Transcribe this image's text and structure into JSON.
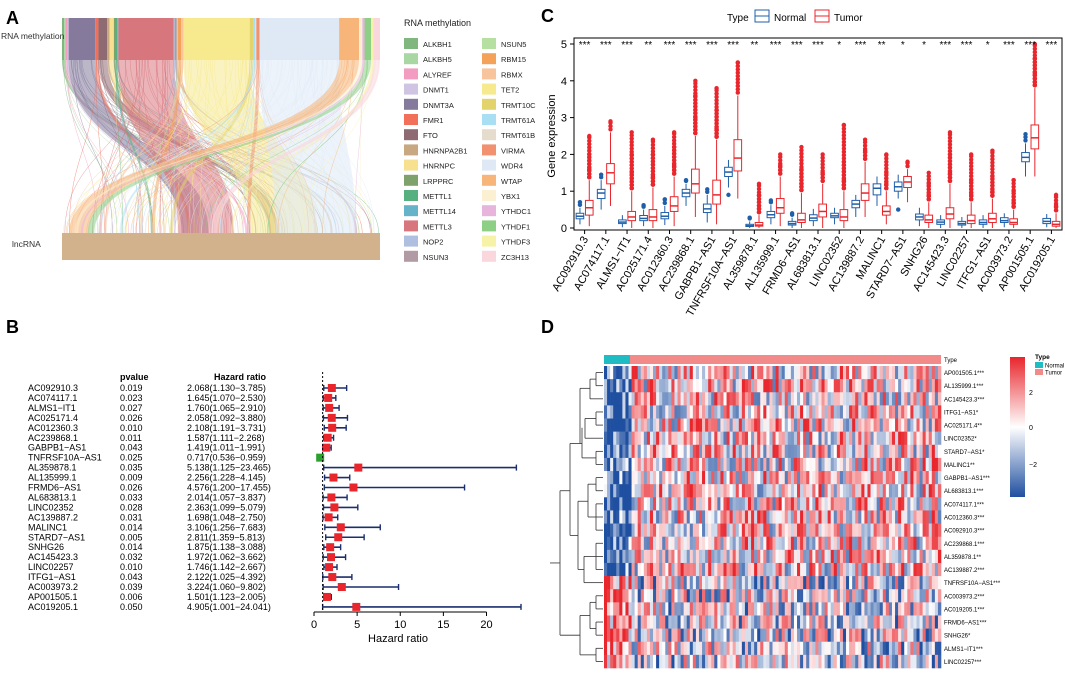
{
  "panels": {
    "a": "A",
    "b": "B",
    "c": "C",
    "d": "D"
  },
  "panel_a": {
    "top_label": "RNA methylation",
    "bottom_label": "lncRNA",
    "legend_title": "RNA methylation",
    "legend_items": [
      {
        "name": "ALKBH1",
        "color": "#7fb77e"
      },
      {
        "name": "ALKBH5",
        "color": "#a9d7a3"
      },
      {
        "name": "ALYREF",
        "color": "#f29cc2"
      },
      {
        "name": "DNMT1",
        "color": "#cfc4e2"
      },
      {
        "name": "DNMT3A",
        "color": "#857a9c"
      },
      {
        "name": "FMR1",
        "color": "#f26f5a"
      },
      {
        "name": "FTO",
        "color": "#8e6a72"
      },
      {
        "name": "HNRNPA2B1",
        "color": "#c8a880"
      },
      {
        "name": "HNRNPC",
        "color": "#f7e08f"
      },
      {
        "name": "LRPPRC",
        "color": "#7fa16b"
      },
      {
        "name": "METTL1",
        "color": "#57b07f"
      },
      {
        "name": "METTL14",
        "color": "#64b3c9"
      },
      {
        "name": "METTL3",
        "color": "#d8767e"
      },
      {
        "name": "NOP2",
        "color": "#aebfe0"
      },
      {
        "name": "NSUN3",
        "color": "#b29aa5"
      },
      {
        "name": "NSUN5",
        "color": "#b6dfa2"
      },
      {
        "name": "RBM15",
        "color": "#f4a259"
      },
      {
        "name": "RBMX",
        "color": "#f8c49b"
      },
      {
        "name": "TET2",
        "color": "#f6e98e"
      },
      {
        "name": "TRMT10C",
        "color": "#e3d36c"
      },
      {
        "name": "TRMT61A",
        "color": "#a9dff2"
      },
      {
        "name": "TRMT61B",
        "color": "#e5dccd"
      },
      {
        "name": "VIRMA",
        "color": "#f1916f"
      },
      {
        "name": "WDR4",
        "color": "#dfe9f6"
      },
      {
        "name": "WTAP",
        "color": "#f7b579"
      },
      {
        "name": "YBX1",
        "color": "#fbf0d2"
      },
      {
        "name": "YTHDC1",
        "color": "#e7b4dc"
      },
      {
        "name": "YTHDF1",
        "color": "#8ccf85"
      },
      {
        "name": "YTHDF3",
        "color": "#f6f2a8"
      },
      {
        "name": "ZC3H13",
        "color": "#f9d7dd"
      }
    ]
  },
  "panel_b": {
    "col_pvalue": "pvalue",
    "col_hr": "Hazard ratio",
    "rows": [
      {
        "gene": "AC092910.3",
        "p": "0.019",
        "hr_text": "2.068(1.130−3.785)"
      },
      {
        "gene": "AC074117.1",
        "p": "0.023",
        "hr_text": "1.645(1.070−2.530)"
      },
      {
        "gene": "ALMS1−IT1",
        "p": "0.027",
        "hr_text": "1.760(1.065−2.910)"
      },
      {
        "gene": "AC025171.4",
        "p": "0.026",
        "hr_text": "2.058(1.092−3.880)"
      },
      {
        "gene": "AC012360.3",
        "p": "0.010",
        "hr_text": "2.108(1.191−3.731)"
      },
      {
        "gene": "AC239868.1",
        "p": "0.011",
        "hr_text": "1.587(1.111−2.268)"
      },
      {
        "gene": "GABPB1−AS1",
        "p": "0.043",
        "hr_text": "1.419(1.011−1.991)"
      },
      {
        "gene": "TNFRSF10A−AS1",
        "p": "0.025",
        "hr_text": "0.717(0.536−0.959)"
      },
      {
        "gene": "AL359878.1",
        "p": "0.035",
        "hr_text": "5.138(1.125−23.465)"
      },
      {
        "gene": "AL135999.1",
        "p": "0.009",
        "hr_text": "2.256(1.228−4.145)"
      },
      {
        "gene": "FRMD6−AS1",
        "p": "0.026",
        "hr_text": "4.576(1.200−17.455)"
      },
      {
        "gene": "AL683813.1",
        "p": "0.033",
        "hr_text": "2.014(1.057−3.837)"
      },
      {
        "gene": "LINC02352",
        "p": "0.028",
        "hr_text": "2.363(1.099−5.079)"
      },
      {
        "gene": "AC139887.2",
        "p": "0.031",
        "hr_text": "1.698(1.048−2.750)"
      },
      {
        "gene": "MALINC1",
        "p": "0.014",
        "hr_text": "3.106(1.256−7.683)"
      },
      {
        "gene": "STARD7−AS1",
        "p": "0.005",
        "hr_text": "2.811(1.359−5.813)"
      },
      {
        "gene": "SNHG26",
        "p": "0.014",
        "hr_text": "1.875(1.138−3.088)"
      },
      {
        "gene": "AC145423.3",
        "p": "0.032",
        "hr_text": "1.972(1.062−3.662)"
      },
      {
        "gene": "LINC02257",
        "p": "0.010",
        "hr_text": "1.746(1.142−2.667)"
      },
      {
        "gene": "ITFG1−AS1",
        "p": "0.043",
        "hr_text": "2.122(1.025−4.392)"
      },
      {
        "gene": "AC003973.2",
        "p": "0.039",
        "hr_text": "3.224(1.060−9.802)"
      },
      {
        "gene": "AP001505.1",
        "p": "0.006",
        "hr_text": "1.501(1.123−2.005)"
      },
      {
        "gene": "AC019205.1",
        "p": "0.050",
        "hr_text": "4.905(1.001−24.041)"
      }
    ]
  },
  "panel_c": {
    "legend_title": "Type",
    "normal_label": "Normal",
    "tumor_label": "Tumor",
    "normal_color": "#1f5fa8",
    "tumor_color": "#e8262c",
    "ylabel": "Gene expression"
  },
  "panel_d": {
    "type_label": "Type",
    "legend_title": "Type",
    "legend_normal": "Normal",
    "legend_tumor": "Tumor",
    "scale_ticks": [
      "2",
      "0",
      "−2"
    ],
    "row_labels": [
      "AP001505.1***",
      "AL135999.1***",
      "AC145423.3***",
      "ITFG1−AS1*",
      "AC025171.4**",
      "LINC02352*",
      "STARD7−AS1*",
      "MALINC1**",
      "GABPB1−AS1***",
      "AL683813.1***",
      "AC074117.1***",
      "AC012360.3***",
      "AC092910.3***",
      "AC239868.1***",
      "AL359878.1**",
      "AC139887.2***",
      "TNFRSF10A−AS1***",
      "AC003973.2***",
      "AC019205.1***",
      "FRMD6−AS1***",
      "SNHG26*",
      "ALMS1−IT1***",
      "LINC02257***"
    ]
  },
  "chart_data": [
    {
      "type": "forest",
      "title": "",
      "xlabel": "Hazard ratio",
      "xlim": [
        0,
        24
      ],
      "xticks": [
        0,
        5,
        10,
        15,
        20
      ],
      "reference_line": 1,
      "genes": [
        "AC092910.3",
        "AC074117.1",
        "ALMS1−IT1",
        "AC025171.4",
        "AC012360.3",
        "AC239868.1",
        "GABPB1−AS1",
        "TNFRSF10A−AS1",
        "AL359878.1",
        "AL135999.1",
        "FRMD6−AS1",
        "AL683813.1",
        "LINC02352",
        "AC139887.2",
        "MALINC1",
        "STARD7−AS1",
        "SNHG26",
        "AC145423.3",
        "LINC02257",
        "ITFG1−AS1",
        "AC003973.2",
        "AP001505.1",
        "AC019205.1"
      ],
      "hr": [
        2.068,
        1.645,
        1.76,
        2.058,
        2.108,
        1.587,
        1.419,
        0.717,
        5.138,
        2.256,
        4.576,
        2.014,
        2.363,
        1.698,
        3.106,
        2.811,
        1.875,
        1.972,
        1.746,
        2.122,
        3.224,
        1.501,
        4.905
      ],
      "lower": [
        1.13,
        1.07,
        1.065,
        1.092,
        1.191,
        1.111,
        1.011,
        0.536,
        1.125,
        1.228,
        1.2,
        1.057,
        1.099,
        1.048,
        1.256,
        1.359,
        1.138,
        1.062,
        1.142,
        1.025,
        1.06,
        1.123,
        1.001
      ],
      "upper": [
        3.785,
        2.53,
        2.91,
        3.88,
        3.731,
        2.268,
        1.991,
        0.959,
        23.465,
        4.145,
        17.455,
        3.837,
        5.079,
        2.75,
        7.683,
        5.813,
        3.088,
        3.662,
        2.667,
        4.392,
        9.802,
        2.005,
        24.041
      ]
    },
    {
      "type": "boxplot",
      "ylabel": "Gene expression",
      "ylim": [
        0,
        5
      ],
      "yticks": [
        0,
        1,
        2,
        3,
        4,
        5
      ],
      "categories": [
        "AC092910.3",
        "AC074117.1",
        "ALMS1−IT1",
        "AC025171.4",
        "AC012360.3",
        "AC239868.1",
        "GABPB1−AS1",
        "TNFRSF10A−AS1",
        "AL359878.1",
        "AL135999.1",
        "FRMD6−AS1",
        "AL683813.1",
        "LINC02352",
        "AC139887.2",
        "MALINC1",
        "STARD7−AS1",
        "SNHG26",
        "AC145423.3",
        "LINC02257",
        "ITFG1−AS1",
        "AC003973.2",
        "AP001505.1",
        "AC019205.1"
      ],
      "significance": [
        "***",
        "***",
        "***",
        "**",
        "***",
        "***",
        "***",
        "***",
        "**",
        "***",
        "***",
        "***",
        "*",
        "***",
        "**",
        "*",
        "*",
        "***",
        "***",
        "*",
        "***",
        "***",
        "***"
      ],
      "series": [
        {
          "name": "Normal",
          "q1": [
            0.25,
            0.8,
            0.12,
            0.2,
            0.25,
            0.85,
            0.42,
            1.4,
            0.04,
            0.28,
            0.08,
            0.2,
            0.28,
            0.55,
            0.9,
            1.0,
            0.22,
            0.1,
            0.08,
            0.1,
            0.15,
            1.8,
            0.12
          ],
          "med": [
            0.32,
            0.95,
            0.16,
            0.26,
            0.32,
            0.95,
            0.52,
            1.52,
            0.06,
            0.36,
            0.12,
            0.27,
            0.33,
            0.65,
            1.08,
            1.12,
            0.3,
            0.16,
            0.12,
            0.15,
            0.2,
            1.92,
            0.18
          ],
          "q3": [
            0.4,
            1.05,
            0.22,
            0.34,
            0.42,
            1.05,
            0.65,
            1.65,
            0.1,
            0.45,
            0.18,
            0.36,
            0.4,
            0.75,
            1.2,
            1.25,
            0.38,
            0.22,
            0.18,
            0.22,
            0.28,
            2.05,
            0.26
          ],
          "lo": [
            0.1,
            0.5,
            0.02,
            0.05,
            0.08,
            0.6,
            0.15,
            1.1,
            0.0,
            0.1,
            0.0,
            0.05,
            0.1,
            0.3,
            0.6,
            0.8,
            0.05,
            0.0,
            0.0,
            0.0,
            0.02,
            1.4,
            0.02
          ],
          "hi": [
            0.55,
            1.3,
            0.35,
            0.5,
            0.6,
            1.2,
            0.9,
            1.85,
            0.18,
            0.62,
            0.28,
            0.52,
            0.55,
            0.9,
            1.4,
            1.45,
            0.55,
            0.35,
            0.3,
            0.35,
            0.4,
            2.3,
            0.38
          ],
          "outliers": [
            [
              0.7
            ],
            [
              1.45
            ],
            [],
            [
              0.62
            ],
            [
              0.78
            ],
            [
              1.3
            ],
            [
              1.05
            ],
            [
              0.9
            ],
            [
              0.28
            ],
            [
              0.75
            ],
            [
              0.4
            ],
            [],
            [],
            [],
            [],
            [
              0.5
            ],
            [],
            [],
            [],
            [],
            [],
            [
              2.55
            ],
            []
          ]
        },
        {
          "name": "Tumor",
          "q1": [
            0.35,
            1.2,
            0.2,
            0.2,
            0.45,
            0.95,
            0.65,
            1.55,
            0.05,
            0.4,
            0.15,
            0.3,
            0.2,
            0.75,
            0.35,
            1.1,
            0.15,
            0.25,
            0.12,
            0.15,
            0.1,
            2.15,
            0.05
          ],
          "med": [
            0.55,
            1.5,
            0.3,
            0.3,
            0.6,
            1.2,
            0.9,
            1.9,
            0.08,
            0.55,
            0.22,
            0.45,
            0.3,
            0.95,
            0.45,
            1.25,
            0.22,
            0.38,
            0.2,
            0.25,
            0.15,
            2.45,
            0.1
          ],
          "q3": [
            0.75,
            1.75,
            0.45,
            0.5,
            0.85,
            1.6,
            1.3,
            2.4,
            0.15,
            0.8,
            0.4,
            0.65,
            0.5,
            1.2,
            0.6,
            1.4,
            0.35,
            0.55,
            0.35,
            0.4,
            0.25,
            2.8,
            0.18
          ],
          "lo": [
            0.05,
            0.6,
            0.0,
            0.0,
            0.05,
            0.3,
            0.1,
            0.8,
            0.0,
            0.05,
            0.0,
            0.0,
            0.0,
            0.3,
            0.1,
            0.7,
            0.0,
            0.0,
            0.0,
            0.0,
            0.0,
            1.4,
            0.0
          ],
          "hi": [
            1.3,
            2.6,
            1.0,
            1.1,
            1.4,
            2.5,
            2.4,
            3.6,
            0.35,
            1.4,
            0.95,
            1.2,
            1.0,
            1.8,
            1.0,
            1.6,
            0.7,
            1.2,
            0.7,
            0.8,
            0.5,
            3.8,
            0.4
          ],
          "outliers": [
            [
              1.6,
              2.0,
              2.5
            ],
            [
              2.9
            ],
            [
              1.5,
              2.0,
              2.6
            ],
            [
              1.4,
              2.0,
              2.4
            ],
            [
              1.7,
              2.2,
              2.6
            ],
            [
              3.0,
              3.6,
              4.0
            ],
            [
              2.7,
              3.2,
              3.8
            ],
            [
              4.5
            ],
            [
              0.6,
              0.9,
              1.2
            ],
            [
              1.7,
              2.0
            ],
            [
              1.2,
              1.6,
              2.2
            ],
            [
              1.5,
              2.0
            ],
            [
              1.3,
              1.8,
              2.8
            ],
            [
              2.1,
              2.4
            ],
            [
              1.2,
              1.5,
              2.0
            ],
            [
              1.8
            ],
            [
              0.9,
              1.2,
              1.5
            ],
            [
              1.5,
              2.0,
              2.6
            ],
            [
              0.9,
              1.3,
              2.0
            ],
            [
              1.0,
              1.4,
              2.1
            ],
            [
              0.7,
              1.0,
              1.3
            ],
            [
              4.2,
              4.6,
              5.0
            ],
            [
              0.6,
              0.9
            ]
          ]
        }
      ]
    },
    {
      "type": "heatmap",
      "rows": [
        "AP001505.1***",
        "AL135999.1***",
        "AC145423.3***",
        "ITFG1−AS1*",
        "AC025171.4**",
        "LINC02352*",
        "STARD7−AS1*",
        "MALINC1**",
        "GABPB1−AS1***",
        "AL683813.1***",
        "AC074117.1***",
        "AC012360.3***",
        "AC092910.3***",
        "AC239868.1***",
        "AL359878.1**",
        "AC139887.2***",
        "TNFRSF10A−AS1***",
        "AC003973.2***",
        "AC019205.1***",
        "FRMD6−AS1***",
        "SNHG26*",
        "ALMS1−IT1***",
        "LINC02257***"
      ],
      "groups": [
        "Normal",
        "Tumor"
      ],
      "scale_range": [
        -3,
        3
      ]
    }
  ]
}
